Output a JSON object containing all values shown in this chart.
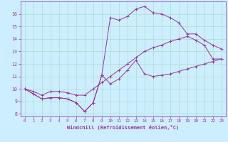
{
  "xlabel": "Windchill (Refroidissement éolien,°C)",
  "background_color": "#cceeff",
  "grid_color": "#aaddcc",
  "line_color": "#993399",
  "xlim": [
    -0.5,
    23.5
  ],
  "ylim": [
    7.8,
    17.0
  ],
  "xticks": [
    0,
    1,
    2,
    3,
    4,
    5,
    6,
    7,
    8,
    9,
    10,
    11,
    12,
    13,
    14,
    15,
    16,
    17,
    18,
    19,
    20,
    21,
    22,
    23
  ],
  "yticks": [
    8,
    9,
    10,
    11,
    12,
    13,
    14,
    15,
    16
  ],
  "series1": [
    10.0,
    9.6,
    9.2,
    9.3,
    9.3,
    9.2,
    8.9,
    8.2,
    8.9,
    11.1,
    10.4,
    10.8,
    11.5,
    12.3,
    11.2,
    11.0,
    11.1,
    11.2,
    11.4,
    11.6,
    11.8,
    12.0,
    12.2,
    12.4
  ],
  "series2": [
    10.0,
    9.8,
    9.5,
    9.8,
    9.8,
    9.7,
    9.5,
    9.5,
    10.0,
    10.5,
    11.0,
    11.5,
    12.0,
    12.5,
    13.0,
    13.3,
    13.5,
    13.8,
    14.0,
    14.2,
    13.9,
    13.5,
    12.4,
    12.4
  ],
  "series3": [
    10.0,
    9.6,
    9.2,
    9.3,
    9.3,
    9.2,
    8.9,
    8.2,
    8.9,
    11.1,
    15.7,
    15.5,
    15.8,
    16.4,
    16.6,
    16.1,
    16.0,
    15.7,
    15.3,
    14.4,
    14.4,
    13.9,
    13.5,
    13.2
  ]
}
